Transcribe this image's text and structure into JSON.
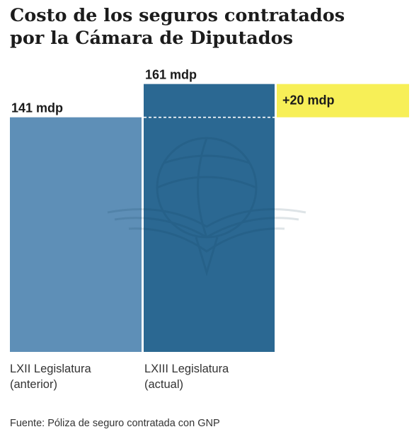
{
  "title_lines": [
    "Costo de los seguros contratados",
    "por la Cámara de Diputados"
  ],
  "chart_data": {
    "type": "bar",
    "title": "Costo de los seguros contratados por la Cámara de Diputados",
    "categories": [
      [
        "LXII Legislatura",
        "(anterior)"
      ],
      [
        "LXIII Legislatura",
        "(actual)"
      ]
    ],
    "values": [
      141,
      161
    ],
    "data_labels": [
      "141 mdp",
      "161 mdp"
    ],
    "difference": {
      "value": 20,
      "label": "+20 mdp"
    },
    "unit": "mdp",
    "colors": {
      "bar_previous": "#5e8fb7",
      "bar_current": "#2b6892",
      "difference_box": "#f7ef57"
    },
    "grid": false
  },
  "source": "Fuente: Póliza de seguro contratada con GNP"
}
